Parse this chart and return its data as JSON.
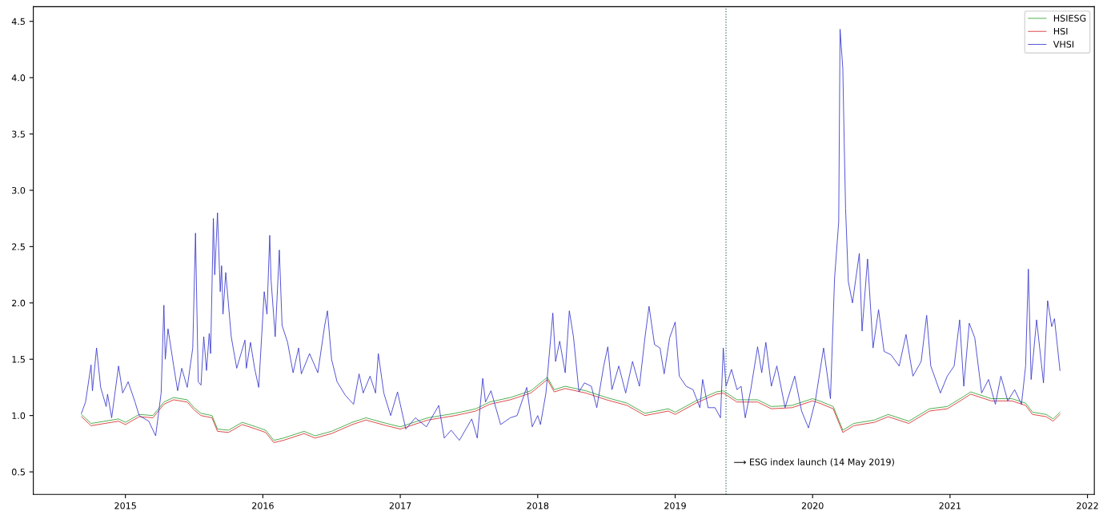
{
  "chart_data": {
    "type": "line",
    "xlim": [
      2014.33,
      2022.05
    ],
    "xticks": [
      2015,
      2016,
      2017,
      2018,
      2019,
      2020,
      2021,
      2022
    ],
    "ylim": [
      0.3,
      4.63
    ],
    "yticks": [
      {
        "value": 0.5,
        "label": "0.5"
      },
      {
        "value": 1.0,
        "label": "1.0"
      },
      {
        "value": 1.5,
        "label": "1.5"
      },
      {
        "value": 2.0,
        "label": "2.0"
      },
      {
        "value": 2.5,
        "label": "2.5"
      },
      {
        "value": 3.0,
        "label": "3.0"
      },
      {
        "value": 3.5,
        "label": "3.5"
      },
      {
        "value": 4.0,
        "label": "4.0"
      },
      {
        "value": 4.5,
        "label": "4.5"
      }
    ],
    "grid": false,
    "legend": "top right",
    "marker": "none",
    "line_style": "solid",
    "series": [
      {
        "name": "HSIESG",
        "color": "#2ca02c",
        "x": [
          2014.68,
          2014.75,
          2014.85,
          2014.95,
          2015.0,
          2015.1,
          2015.2,
          2015.28,
          2015.35,
          2015.45,
          2015.5,
          2015.55,
          2015.63,
          2015.67,
          2015.75,
          2015.85,
          2015.95,
          2016.02,
          2016.08,
          2016.15,
          2016.3,
          2016.38,
          2016.5,
          2016.65,
          2016.75,
          2016.9,
          2017.0,
          2017.2,
          2017.4,
          2017.55,
          2017.65,
          2017.8,
          2017.95,
          2018.07,
          2018.12,
          2018.2,
          2018.35,
          2018.5,
          2018.65,
          2018.78,
          2018.95,
          2019.0,
          2019.15,
          2019.3,
          2019.35,
          2019.45,
          2019.6,
          2019.7,
          2019.85,
          2020.0,
          2020.05,
          2020.15,
          2020.22,
          2020.3,
          2020.45,
          2020.55,
          2020.7,
          2020.85,
          2020.98,
          2021.1,
          2021.15,
          2021.3,
          2021.45,
          2021.55,
          2021.6,
          2021.7,
          2021.75,
          2021.8
        ],
        "values": [
          1.01,
          0.93,
          0.95,
          0.97,
          0.94,
          1.01,
          1.0,
          1.12,
          1.16,
          1.14,
          1.07,
          1.02,
          1.0,
          0.88,
          0.87,
          0.94,
          0.9,
          0.87,
          0.78,
          0.8,
          0.86,
          0.82,
          0.86,
          0.94,
          0.98,
          0.93,
          0.9,
          0.98,
          1.02,
          1.06,
          1.12,
          1.16,
          1.22,
          1.34,
          1.23,
          1.26,
          1.22,
          1.16,
          1.11,
          1.02,
          1.06,
          1.03,
          1.13,
          1.21,
          1.22,
          1.14,
          1.14,
          1.08,
          1.09,
          1.15,
          1.13,
          1.08,
          0.87,
          0.93,
          0.96,
          1.01,
          0.95,
          1.06,
          1.08,
          1.17,
          1.21,
          1.15,
          1.15,
          1.11,
          1.03,
          1.01,
          0.97,
          1.03
        ]
      },
      {
        "name": "HSI",
        "color": "#d62728",
        "x": [
          2014.68,
          2014.75,
          2014.85,
          2014.95,
          2015.0,
          2015.1,
          2015.2,
          2015.28,
          2015.35,
          2015.45,
          2015.5,
          2015.55,
          2015.63,
          2015.67,
          2015.75,
          2015.85,
          2015.95,
          2016.02,
          2016.08,
          2016.15,
          2016.3,
          2016.38,
          2016.5,
          2016.65,
          2016.75,
          2016.9,
          2017.0,
          2017.2,
          2017.4,
          2017.55,
          2017.65,
          2017.8,
          2017.95,
          2018.07,
          2018.12,
          2018.2,
          2018.35,
          2018.5,
          2018.65,
          2018.78,
          2018.95,
          2019.0,
          2019.15,
          2019.3,
          2019.35,
          2019.45,
          2019.6,
          2019.7,
          2019.85,
          2020.0,
          2020.05,
          2020.15,
          2020.22,
          2020.3,
          2020.45,
          2020.55,
          2020.7,
          2020.85,
          2020.98,
          2021.1,
          2021.15,
          2021.3,
          2021.45,
          2021.55,
          2021.6,
          2021.7,
          2021.75,
          2021.8
        ],
        "values": [
          0.99,
          0.91,
          0.93,
          0.95,
          0.92,
          0.99,
          0.98,
          1.1,
          1.14,
          1.12,
          1.05,
          1.0,
          0.98,
          0.86,
          0.85,
          0.92,
          0.88,
          0.85,
          0.76,
          0.78,
          0.84,
          0.8,
          0.84,
          0.92,
          0.96,
          0.91,
          0.88,
          0.96,
          1.0,
          1.04,
          1.1,
          1.14,
          1.2,
          1.32,
          1.21,
          1.24,
          1.2,
          1.14,
          1.09,
          1.0,
          1.04,
          1.01,
          1.11,
          1.19,
          1.2,
          1.12,
          1.12,
          1.06,
          1.07,
          1.13,
          1.11,
          1.06,
          0.85,
          0.91,
          0.94,
          0.99,
          0.93,
          1.04,
          1.06,
          1.15,
          1.19,
          1.13,
          1.13,
          1.09,
          1.01,
          0.99,
          0.95,
          1.01
        ]
      },
      {
        "name": "VHSI",
        "color": "#3333cc",
        "x": [
          2014.68,
          2014.71,
          2014.75,
          2014.76,
          2014.79,
          2014.82,
          2014.86,
          2014.87,
          2014.9,
          2014.95,
          2014.98,
          2015.02,
          2015.07,
          2015.1,
          2015.17,
          2015.22,
          2015.26,
          2015.28,
          2015.29,
          2015.31,
          2015.35,
          2015.38,
          2015.41,
          2015.45,
          2015.49,
          2015.51,
          2015.53,
          2015.55,
          2015.57,
          2015.59,
          2015.61,
          2015.62,
          2015.64,
          2015.65,
          2015.67,
          2015.69,
          2015.7,
          2015.71,
          2015.73,
          2015.77,
          2015.81,
          2015.87,
          2015.88,
          2015.91,
          2015.94,
          2015.97,
          2016.01,
          2016.03,
          2016.05,
          2016.06,
          2016.09,
          2016.12,
          2016.14,
          2016.18,
          2016.22,
          2016.26,
          2016.28,
          2016.34,
          2016.4,
          2016.45,
          2016.47,
          2016.5,
          2016.54,
          2016.6,
          2016.66,
          2016.7,
          2016.73,
          2016.78,
          2016.82,
          2016.84,
          2016.88,
          2016.93,
          2016.98,
          2017.04,
          2017.11,
          2017.19,
          2017.28,
          2017.32,
          2017.37,
          2017.43,
          2017.52,
          2017.56,
          2017.6,
          2017.62,
          2017.66,
          2017.73,
          2017.8,
          2017.85,
          2017.92,
          2017.96,
          2018.0,
          2018.02,
          2018.06,
          2018.11,
          2018.13,
          2018.16,
          2018.2,
          2018.23,
          2018.26,
          2018.3,
          2018.34,
          2018.39,
          2018.43,
          2018.48,
          2018.51,
          2018.54,
          2018.59,
          2018.64,
          2018.69,
          2018.74,
          2018.78,
          2018.81,
          2018.85,
          2018.89,
          2018.92,
          2018.96,
          2019.0,
          2019.03,
          2019.08,
          2019.13,
          2019.18,
          2019.2,
          2019.24,
          2019.29,
          2019.33,
          2019.35,
          2019.37,
          2019.41,
          2019.45,
          2019.48,
          2019.51,
          2019.55,
          2019.6,
          2019.63,
          2019.66,
          2019.7,
          2019.74,
          2019.8,
          2019.87,
          2019.92,
          2019.97,
          2020.02,
          2020.08,
          2020.13,
          2020.16,
          2020.19,
          2020.2,
          2020.22,
          2020.23,
          2020.24,
          2020.26,
          2020.29,
          2020.34,
          2020.36,
          2020.4,
          2020.44,
          2020.48,
          2020.52,
          2020.57,
          2020.63,
          2020.68,
          2020.73,
          2020.79,
          2020.83,
          2020.86,
          2020.93,
          2020.98,
          2021.03,
          2021.07,
          2021.1,
          2021.14,
          2021.18,
          2021.23,
          2021.28,
          2021.33,
          2021.37,
          2021.42,
          2021.47,
          2021.52,
          2021.55,
          2021.57,
          2021.59,
          2021.63,
          2021.68,
          2021.71,
          2021.74,
          2021.76,
          2021.78,
          2021.8
        ],
        "values": [
          1.02,
          1.12,
          1.45,
          1.22,
          1.6,
          1.25,
          1.08,
          1.19,
          0.98,
          1.44,
          1.2,
          1.3,
          1.12,
          1.0,
          0.95,
          0.82,
          1.2,
          1.98,
          1.5,
          1.77,
          1.45,
          1.22,
          1.42,
          1.25,
          1.6,
          2.62,
          1.3,
          1.27,
          1.7,
          1.4,
          1.73,
          1.55,
          2.75,
          2.25,
          2.8,
          2.1,
          2.33,
          1.9,
          2.27,
          1.7,
          1.42,
          1.67,
          1.42,
          1.65,
          1.42,
          1.25,
          2.1,
          1.9,
          2.6,
          2.2,
          1.7,
          2.47,
          1.8,
          1.65,
          1.38,
          1.6,
          1.37,
          1.55,
          1.38,
          1.8,
          1.93,
          1.5,
          1.3,
          1.18,
          1.1,
          1.37,
          1.2,
          1.35,
          1.2,
          1.55,
          1.2,
          1.0,
          1.21,
          0.88,
          0.98,
          0.9,
          1.09,
          0.8,
          0.87,
          0.78,
          0.97,
          0.8,
          1.33,
          1.12,
          1.22,
          0.92,
          0.98,
          1.0,
          1.25,
          0.9,
          1.0,
          0.92,
          1.2,
          1.91,
          1.48,
          1.66,
          1.38,
          1.93,
          1.7,
          1.21,
          1.29,
          1.26,
          1.07,
          1.44,
          1.61,
          1.23,
          1.44,
          1.2,
          1.48,
          1.26,
          1.69,
          1.97,
          1.63,
          1.6,
          1.37,
          1.69,
          1.83,
          1.35,
          1.26,
          1.23,
          1.07,
          1.32,
          1.07,
          1.07,
          0.98,
          1.6,
          1.26,
          1.41,
          1.23,
          1.26,
          0.98,
          1.23,
          1.61,
          1.38,
          1.65,
          1.26,
          1.44,
          1.07,
          1.35,
          1.04,
          0.89,
          1.13,
          1.6,
          1.15,
          2.22,
          2.72,
          4.43,
          4.08,
          3.43,
          2.84,
          2.19,
          2.0,
          2.44,
          1.75,
          2.39,
          1.6,
          1.94,
          1.57,
          1.54,
          1.44,
          1.72,
          1.35,
          1.48,
          1.89,
          1.44,
          1.2,
          1.35,
          1.44,
          1.85,
          1.26,
          1.82,
          1.69,
          1.2,
          1.32,
          1.1,
          1.35,
          1.13,
          1.23,
          1.1,
          1.44,
          2.3,
          1.32,
          1.85,
          1.29,
          2.02,
          1.79,
          1.86,
          1.63,
          1.4
        ]
      }
    ],
    "ref_lines": [
      {
        "axis": "x",
        "value": 2019.37,
        "color": "#2f6f6f",
        "line_style": "dotted"
      }
    ],
    "annotations": [
      "⟶ ESG index launch (14 May 2019)"
    ]
  }
}
